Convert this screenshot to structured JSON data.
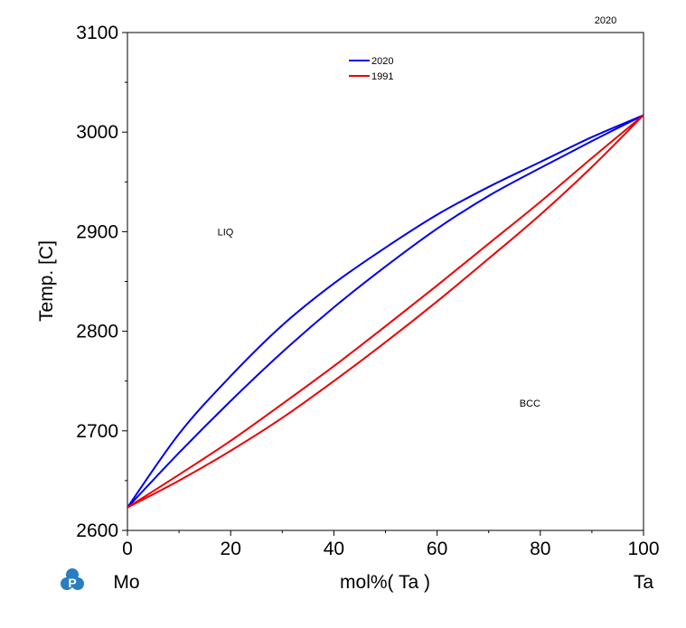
{
  "chart_data": {
    "type": "line",
    "corner_label": "2020",
    "ylabel": "Temp.  [C]",
    "xlabel": "mol%(  Ta  )",
    "x_left_label": "Mo",
    "x_right_label": "Ta",
    "xlim": [
      0,
      100
    ],
    "ylim": [
      2600,
      3100
    ],
    "x_ticks": [
      0,
      20,
      40,
      60,
      80,
      100
    ],
    "y_ticks": [
      2600,
      2700,
      2800,
      2900,
      3000,
      3100
    ],
    "grid": false,
    "legend_position": "top-center",
    "regions": [
      {
        "label": "LIQ",
        "x": 19,
        "y": 2900
      },
      {
        "label": "BCC",
        "x": 78,
        "y": 2728
      }
    ],
    "series": [
      {
        "name": "2020",
        "color": "#0000ee",
        "curves": [
          {
            "x": [
              0,
              10,
              20,
              30,
              40,
              50,
              60,
              70,
              80,
              90,
              100
            ],
            "y": [
              2623,
              2697,
              2755,
              2806,
              2848,
              2884,
              2917,
              2945,
              2970,
              2995,
              3017
            ]
          },
          {
            "x": [
              0,
              10,
              20,
              30,
              40,
              50,
              60,
              70,
              80,
              90,
              100
            ],
            "y": [
              2623,
              2678,
              2730,
              2779,
              2824,
              2865,
              2903,
              2936,
              2964,
              2991,
              3017
            ]
          }
        ]
      },
      {
        "name": "1991",
        "color": "#ee0000",
        "curves": [
          {
            "x": [
              0,
              10,
              20,
              30,
              40,
              50,
              60,
              70,
              80,
              90,
              100
            ],
            "y": [
              2623,
              2656,
              2690,
              2727,
              2765,
              2805,
              2846,
              2888,
              2930,
              2974,
              3017
            ]
          },
          {
            "x": [
              0,
              10,
              20,
              30,
              40,
              50,
              60,
              70,
              80,
              90,
              100
            ],
            "y": [
              2623,
              2650,
              2680,
              2713,
              2750,
              2789,
              2830,
              2873,
              2917,
              2965,
              3017
            ]
          }
        ]
      }
    ]
  },
  "logo": {
    "glyph": "P",
    "color": "#2a7dc0"
  }
}
